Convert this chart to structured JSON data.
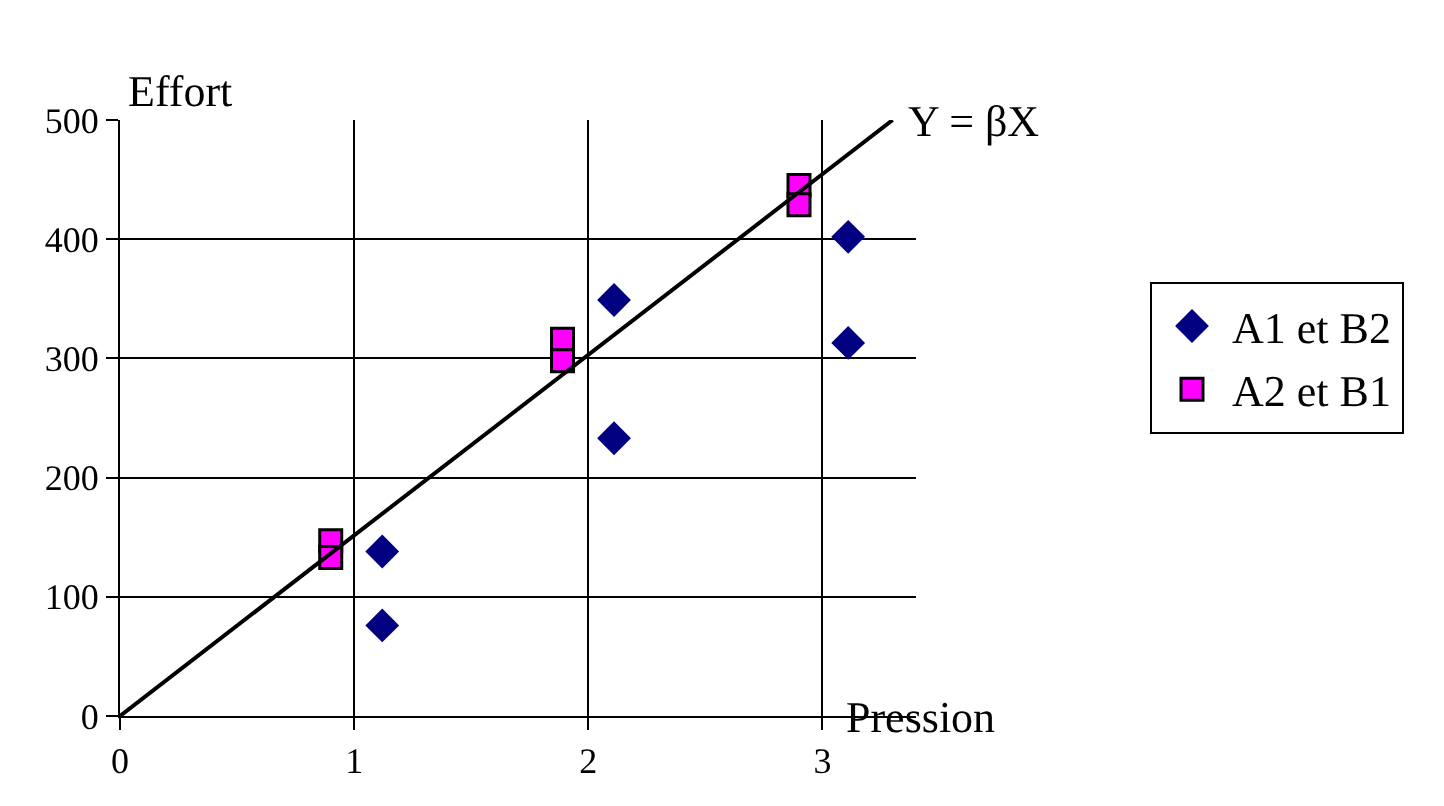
{
  "chart_data": {
    "type": "scatter",
    "xlabel": "Pression",
    "ylabel": "Effort",
    "xlim": [
      0,
      3.4
    ],
    "ylim": [
      0,
      500
    ],
    "xticks": [
      0,
      1,
      2,
      3
    ],
    "yticks": [
      0,
      100,
      200,
      300,
      400,
      500
    ],
    "grid": true,
    "legend": "right",
    "series": [
      {
        "name": "A1 et B2",
        "color": "#000080",
        "marker": "diamond",
        "x": [
          1.12,
          1.12,
          2.11,
          2.11,
          3.11,
          3.11
        ],
        "values": [
          138,
          76,
          349,
          233,
          402,
          313
        ]
      },
      {
        "name": "A2 et B1",
        "color": "#ff00ff",
        "marker": "square",
        "x": [
          0.9,
          0.9,
          1.89,
          1.89,
          2.9,
          2.9
        ],
        "values": [
          147,
          133,
          316,
          298,
          445,
          429
        ]
      },
      {
        "type": "line",
        "color": "#000000",
        "marker": "none",
        "line_style": "solid",
        "x": [
          0,
          3.3
        ],
        "values": [
          0,
          500
        ]
      }
    ],
    "annotations": [
      {
        "text": "Y = βX",
        "x": 3.3,
        "y": 500
      }
    ]
  }
}
